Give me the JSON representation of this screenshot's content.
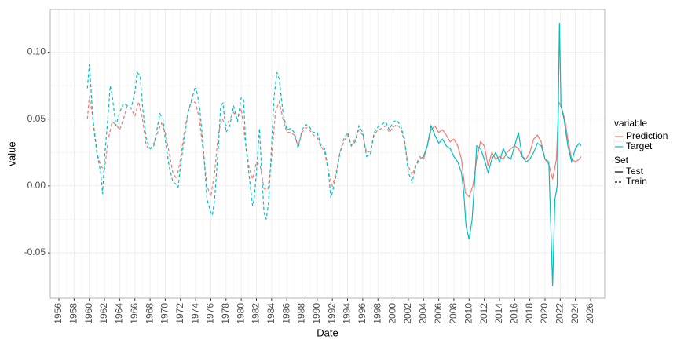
{
  "chart_data": {
    "type": "line",
    "xlabel": "Date",
    "ylabel": "value",
    "xlim": [
      1954.86,
      2027.86
    ],
    "xticks": [
      1956,
      1958,
      1960,
      1962,
      1964,
      1966,
      1968,
      1970,
      1972,
      1974,
      1976,
      1978,
      1980,
      1982,
      1984,
      1986,
      1988,
      1990,
      1992,
      1994,
      1996,
      1998,
      2000,
      2002,
      2004,
      2006,
      2008,
      2010,
      2012,
      2014,
      2016,
      2018,
      2020,
      2022,
      2024,
      2026
    ],
    "ylim": [
      -0.084,
      0.132
    ],
    "yticks": [
      -0.05,
      {
        "value": 0,
        "label": "0.00"
      },
      0.05,
      {
        "value": 0.1,
        "label": "0.10"
      }
    ],
    "grid": true,
    "legend_variable": {
      "title": "variable",
      "labels": [
        "Prediction",
        "Target"
      ],
      "colors": [
        "#F8766D",
        "#00BFC4"
      ]
    },
    "legend_set": {
      "title": "Set",
      "labels": [
        "Test",
        "Train"
      ],
      "dashes": [
        "solid",
        "dashed"
      ]
    },
    "series": [
      {
        "variable": 0,
        "set": 1,
        "color": "#F8766D",
        "dash": "dashed",
        "x": [
          1959.75,
          1960,
          1960.5,
          1961,
          1961.5,
          1962,
          1962.5,
          1963,
          1963.5,
          1964,
          1964.5,
          1965,
          1965.5,
          1966,
          1966.5,
          1967,
          1967.5,
          1968,
          1968.5,
          1969,
          1969.5,
          1970,
          1970.5,
          1971,
          1971.5,
          1972,
          1972.5,
          1973,
          1973.5,
          1974,
          1974.5,
          1975,
          1975.5,
          1976,
          1976.5,
          1977,
          1977.5,
          1978,
          1978.5,
          1979,
          1979.5,
          1980,
          1980.5,
          1981,
          1981.5,
          1982,
          1982.5,
          1983,
          1983.5,
          1984,
          1984.5,
          1985,
          1985.5,
          1986,
          1986.5,
          1987,
          1987.5,
          1988,
          1988.5,
          1989,
          1989.5,
          1990,
          1990.5,
          1991,
          1991.5,
          1992,
          1992.5,
          1993,
          1993.5,
          1994,
          1994.5,
          1995,
          1995.5,
          1996,
          1996.5,
          1997,
          1997.5,
          1998,
          1998.5,
          1999,
          1999.5,
          2000,
          2000.5,
          2001,
          2001.5,
          2002,
          2002.5,
          2003,
          2003.5,
          2004
        ],
        "values": [
          0.05,
          0.067,
          0.05,
          0.025,
          0.015,
          0.012,
          0.035,
          0.048,
          0.046,
          0.042,
          0.05,
          0.06,
          0.058,
          0.052,
          0.063,
          0.05,
          0.03,
          0.027,
          0.032,
          0.04,
          0.047,
          0.04,
          0.025,
          0.01,
          0.005,
          0.02,
          0.04,
          0.055,
          0.064,
          0.062,
          0.05,
          0.025,
          0.0,
          -0.008,
          0.01,
          0.04,
          0.05,
          0.045,
          0.05,
          0.055,
          0.05,
          0.058,
          0.035,
          0.015,
          0.005,
          0.018,
          0.015,
          -0.002,
          -0.003,
          0.02,
          0.055,
          0.063,
          0.05,
          0.04,
          0.04,
          0.038,
          0.03,
          0.04,
          0.044,
          0.042,
          0.038,
          0.036,
          0.03,
          0.025,
          0.01,
          0.0,
          0.01,
          0.025,
          0.033,
          0.038,
          0.03,
          0.035,
          0.042,
          0.038,
          0.025,
          0.026,
          0.038,
          0.042,
          0.043,
          0.045,
          0.04,
          0.044,
          0.046,
          0.043,
          0.033,
          0.015,
          0.008,
          0.016,
          0.022,
          0.02
        ]
      },
      {
        "variable": 1,
        "set": 1,
        "color": "#00BFC4",
        "dash": "dashed",
        "x": [
          1959.75,
          1960,
          1960.25,
          1960.5,
          1961,
          1961.5,
          1961.75,
          1962,
          1962.5,
          1962.75,
          1963,
          1963.5,
          1964,
          1964.5,
          1965,
          1965.5,
          1966,
          1966.3,
          1966.7,
          1967,
          1967.5,
          1968,
          1968.5,
          1969,
          1969.3,
          1969.7,
          1970,
          1970.5,
          1971,
          1971.5,
          1971.7,
          1972,
          1972.5,
          1973,
          1973.5,
          1974,
          1974.5,
          1975,
          1975.5,
          1976,
          1976.2,
          1976.5,
          1977,
          1977.3,
          1977.6,
          1978,
          1978.5,
          1979,
          1979.5,
          1980,
          1980.3,
          1980.6,
          1981,
          1981.5,
          1981.7,
          1982,
          1982.4,
          1982.7,
          1983,
          1983.3,
          1983.6,
          1984,
          1984.3,
          1984.7,
          1985,
          1985.5,
          1986,
          1986.5,
          1987,
          1987.5,
          1988,
          1988.5,
          1989,
          1989.5,
          1990,
          1990.5,
          1991,
          1991.5,
          1991.8,
          1992,
          1992.5,
          1993,
          1993.5,
          1994,
          1994.5,
          1995,
          1995.5,
          1996,
          1996.5,
          1997,
          1997.5,
          1998,
          1998.5,
          1999,
          1999.5,
          2000,
          2000.5,
          2001,
          2001.5,
          2002,
          2002.5,
          2003,
          2003.5,
          2004
        ],
        "values": [
          0.073,
          0.091,
          0.07,
          0.047,
          0.025,
          0.01,
          -0.006,
          0.02,
          0.055,
          0.075,
          0.068,
          0.045,
          0.055,
          0.062,
          0.06,
          0.058,
          0.07,
          0.085,
          0.082,
          0.06,
          0.035,
          0.028,
          0.03,
          0.045,
          0.054,
          0.05,
          0.035,
          0.015,
          0.003,
          0.001,
          -0.001,
          0.015,
          0.035,
          0.055,
          0.065,
          0.075,
          0.06,
          0.03,
          -0.01,
          -0.02,
          -0.022,
          -0.01,
          0.03,
          0.06,
          0.062,
          0.04,
          0.045,
          0.06,
          0.048,
          0.066,
          0.065,
          0.03,
          0.01,
          -0.015,
          -0.01,
          0.01,
          0.043,
          0.01,
          -0.02,
          -0.025,
          -0.012,
          0.03,
          0.065,
          0.085,
          0.08,
          0.055,
          0.042,
          0.043,
          0.04,
          0.028,
          0.042,
          0.046,
          0.044,
          0.04,
          0.04,
          0.03,
          0.028,
          0.01,
          -0.009,
          -0.005,
          0.008,
          0.025,
          0.035,
          0.04,
          0.03,
          0.033,
          0.045,
          0.04,
          0.022,
          0.024,
          0.04,
          0.044,
          0.046,
          0.048,
          0.042,
          0.048,
          0.049,
          0.045,
          0.035,
          0.01,
          0.003,
          0.015,
          0.02,
          0.022
        ]
      },
      {
        "variable": 0,
        "set": 0,
        "color": "#F8766D",
        "dash": "solid",
        "x": [
          2004,
          2004.5,
          2005,
          2005.5,
          2006,
          2006.5,
          2007,
          2007.5,
          2008,
          2008.5,
          2009,
          2009.5,
          2010,
          2010.5,
          2011,
          2011.5,
          2012,
          2012.5,
          2013,
          2013.5,
          2014,
          2014.5,
          2015,
          2015.5,
          2016,
          2016.5,
          2017,
          2017.5,
          2018,
          2018.5,
          2019,
          2019.5,
          2020,
          2020.5,
          2021,
          2021.5,
          2021.8,
          2022.2,
          2022.6,
          2023,
          2023.5,
          2024,
          2024.5,
          2024.75
        ],
        "values": [
          0.02,
          0.03,
          0.042,
          0.045,
          0.04,
          0.042,
          0.038,
          0.033,
          0.035,
          0.03,
          0.02,
          -0.005,
          -0.008,
          0.0,
          0.02,
          0.033,
          0.03,
          0.015,
          0.025,
          0.02,
          0.022,
          0.02,
          0.025,
          0.028,
          0.03,
          0.028,
          0.022,
          0.02,
          0.025,
          0.035,
          0.038,
          0.033,
          0.02,
          0.016,
          0.005,
          0.02,
          0.063,
          0.058,
          0.05,
          0.035,
          0.02,
          0.018,
          0.02,
          0.022
        ]
      },
      {
        "variable": 1,
        "set": 0,
        "color": "#00BFC4",
        "dash": "solid",
        "x": [
          2004,
          2004.5,
          2005,
          2005.5,
          2006,
          2006.5,
          2007,
          2007.5,
          2008,
          2008.5,
          2009,
          2009.3,
          2009.6,
          2010,
          2010.4,
          2010.8,
          2011,
          2011.5,
          2012,
          2012.5,
          2013,
          2013.5,
          2014,
          2014.5,
          2015,
          2015.5,
          2016,
          2016.5,
          2017,
          2017.5,
          2018,
          2018.5,
          2019,
          2019.5,
          2020,
          2020.5,
          2021,
          2021.3,
          2021.6,
          2021.9,
          2022.1,
          2022.5,
          2023,
          2023.5,
          2024,
          2024.5,
          2024.75
        ],
        "values": [
          0.022,
          0.03,
          0.045,
          0.038,
          0.032,
          0.035,
          0.03,
          0.028,
          0.022,
          0.018,
          0.01,
          -0.005,
          -0.03,
          -0.04,
          -0.025,
          0.01,
          0.03,
          0.028,
          0.02,
          0.01,
          0.02,
          0.025,
          0.018,
          0.028,
          0.022,
          0.02,
          0.03,
          0.04,
          0.022,
          0.018,
          0.02,
          0.025,
          0.032,
          0.03,
          0.02,
          0.018,
          -0.075,
          -0.01,
          0.0,
          0.122,
          0.06,
          0.05,
          0.03,
          0.018,
          0.028,
          0.032,
          0.03
        ]
      }
    ]
  }
}
